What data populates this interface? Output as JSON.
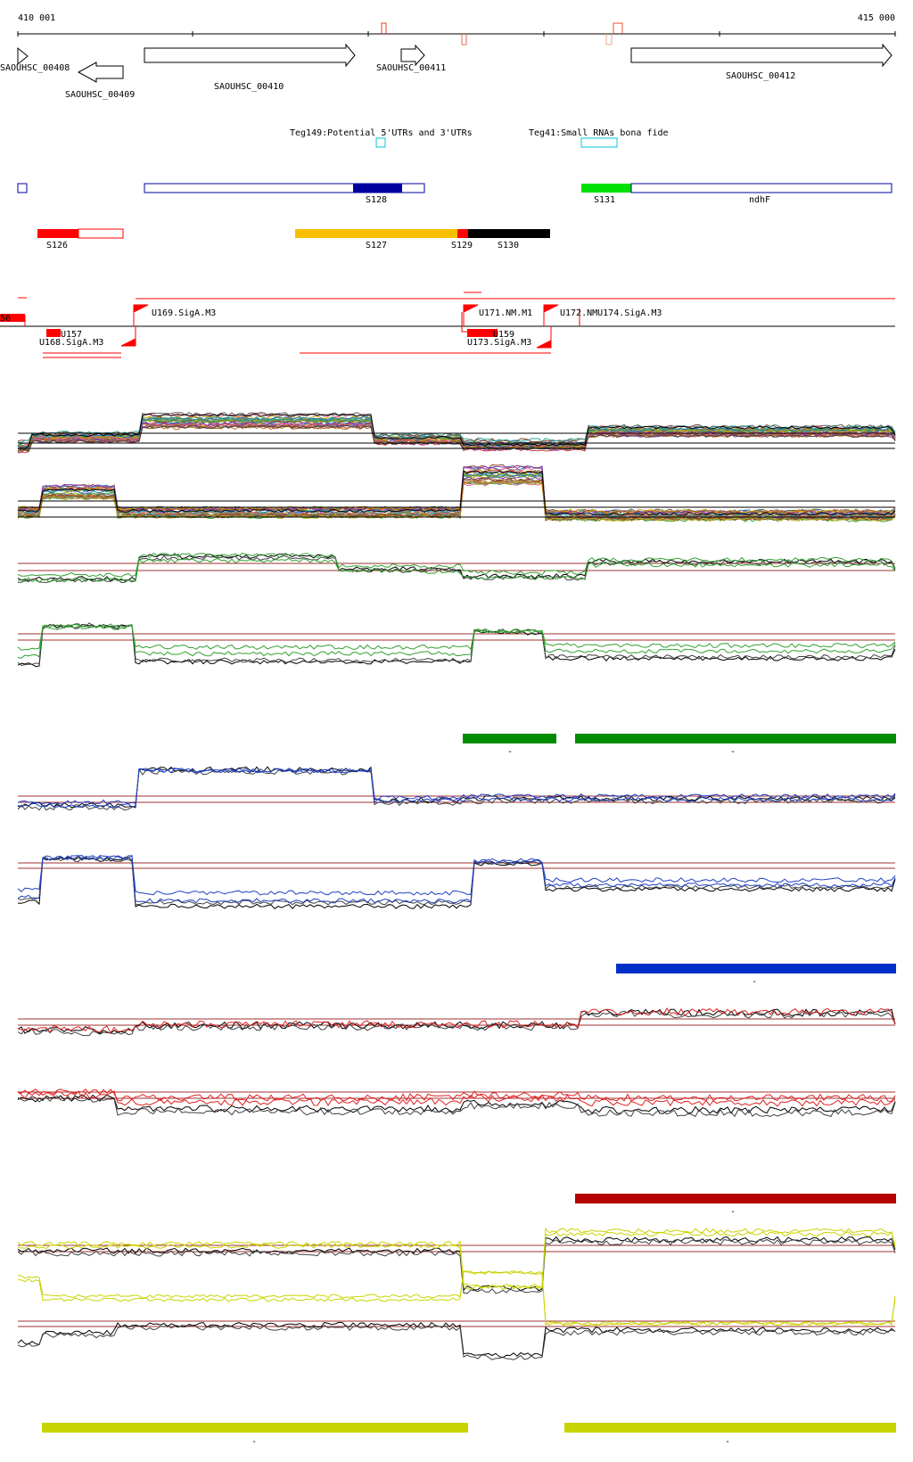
{
  "coordinates": {
    "start": "410 001",
    "end": "415 000"
  },
  "genes": [
    {
      "label": "SAOUHSC_00408",
      "strand": "+"
    },
    {
      "label": "SAOUHSC_00409",
      "strand": "-"
    },
    {
      "label": "SAOUHSC_00410",
      "strand": "+"
    },
    {
      "label": "SAOUHSC_00411",
      "strand": "+"
    },
    {
      "label": "SAOUHSC_00412",
      "strand": "+"
    }
  ],
  "teg_tracks": [
    {
      "label": "Teg149:Potential 5'UTRs and 3'UTRs"
    },
    {
      "label": "Teg41:Small RNAs bona fide"
    }
  ],
  "segments_a": [
    {
      "label": "S128"
    },
    {
      "label": "S131"
    },
    {
      "label": "ndhF"
    }
  ],
  "segments_b": [
    {
      "label": "S126"
    },
    {
      "label": "S127"
    },
    {
      "label": "S129"
    },
    {
      "label": "S130"
    }
  ],
  "promoters": [
    {
      "label": "56"
    },
    {
      "label": "U157"
    },
    {
      "label": "U168.SigA.M3"
    },
    {
      "label": "U169.SigA.M3"
    },
    {
      "label": "U171.NM.M1"
    },
    {
      "label": "U159"
    },
    {
      "label": "U173.SigA.M3"
    },
    {
      "label": "U172.NMU174.SigA.M3"
    }
  ],
  "marker_labels": [
    "-",
    "-",
    "-",
    "-",
    "-",
    "-",
    "-"
  ],
  "colors": {
    "gene_outline": "#000000",
    "teg_box": "#00c8d8",
    "segment_blue": "#0000a0",
    "segment_green": "#00e000",
    "segment_red": "#ff0000",
    "segment_orange": "#f8c000",
    "segment_black": "#000000",
    "promoter_red": "#ff0000",
    "bar_green": "#008c00",
    "bar_blue": "#0030c8",
    "bar_red": "#b40000",
    "bar_yellow": "#c8d400",
    "baseline": "#a03030"
  }
}
